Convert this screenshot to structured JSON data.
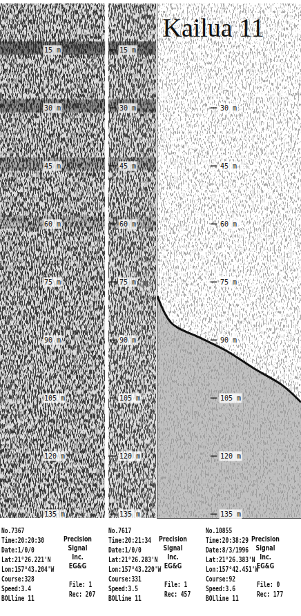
{
  "chart_data": {
    "type": "line",
    "title": "Kailua 11",
    "ylim": [
      3,
      136
    ],
    "tick_labels": "y",
    "panels": [
      {
        "yticks": [
          {
            "value": 15,
            "label": "15 m"
          },
          {
            "value": 30,
            "label": "30 m"
          },
          {
            "value": 45,
            "label": "45 m"
          },
          {
            "value": 60,
            "label": "60 m"
          },
          {
            "value": 75,
            "label": "75 m"
          },
          {
            "value": 90,
            "label": "90 m"
          },
          {
            "value": 105,
            "label": "105 m"
          },
          {
            "value": 120,
            "label": "120 m"
          },
          {
            "value": 135,
            "label": "135 m"
          }
        ],
        "footer": {
          "info": [
            "No.7367",
            "Time:20:20:30",
            "Date:1/0/0",
            "Lat:21°26.221'N",
            "Lon:157°43.204'W",
            "Course:328",
            "Speed:3.4",
            "BOLline 11"
          ],
          "maker": [
            "Precision",
            "Signal",
            "Inc.",
            "EG&G"
          ],
          "record": [
            "File: 1",
            "Rec: 207"
          ]
        }
      },
      {
        "yticks": [
          {
            "value": 15,
            "label": "15 m"
          },
          {
            "value": 30,
            "label": "30 m"
          },
          {
            "value": 45,
            "label": "45 m"
          },
          {
            "value": 60,
            "label": "60 m"
          },
          {
            "value": 75,
            "label": "75 m"
          },
          {
            "value": 90,
            "label": "90 m"
          },
          {
            "value": 105,
            "label": "105 m"
          },
          {
            "value": 120,
            "label": "120 m"
          },
          {
            "value": 135,
            "label": "135 m"
          }
        ],
        "footer": {
          "info": [
            "No.7617",
            "Time:20:21:34",
            "Date:1/0/0",
            "Lat:21°26.283'N",
            "Lon:157°43.220'W",
            "Course:331",
            "Speed:3.5",
            "BOLline 11"
          ],
          "maker": [
            "Precision",
            "Signal",
            "Inc.",
            "EG&G"
          ],
          "record": [
            "File: 1",
            "Rec: 457"
          ]
        }
      },
      {
        "yticks": [
          {
            "value": 30,
            "label": "30 m"
          },
          {
            "value": 45,
            "label": "45 m"
          },
          {
            "value": 60,
            "label": "60 m"
          },
          {
            "value": 75,
            "label": "75 m"
          },
          {
            "value": 90,
            "label": "90 m"
          },
          {
            "value": 105,
            "label": "105 m"
          },
          {
            "value": 120,
            "label": "120 m"
          },
          {
            "value": 135,
            "label": "135 m"
          }
        ],
        "xlim": [
          0,
          100
        ],
        "x": [
          0,
          10,
          29,
          48,
          67,
          87,
          100
        ],
        "values": [
          78.6,
          85.7,
          89.3,
          92.8,
          97.3,
          101.7,
          106.1
        ],
        "footer": {
          "info": [
            "No.10855",
            "Time:20:38:29",
            "Date:8/3/1996",
            "Lat:21°26.383'N",
            "Lon:157°42.451'W",
            "Course:92",
            "Speed:3.6",
            "BOLline 11"
          ],
          "maker": [
            "Precision",
            "Signal",
            "Inc.",
            "EG&G"
          ],
          "record": [
            "File: 0",
            "Rec: 177"
          ]
        }
      }
    ]
  }
}
